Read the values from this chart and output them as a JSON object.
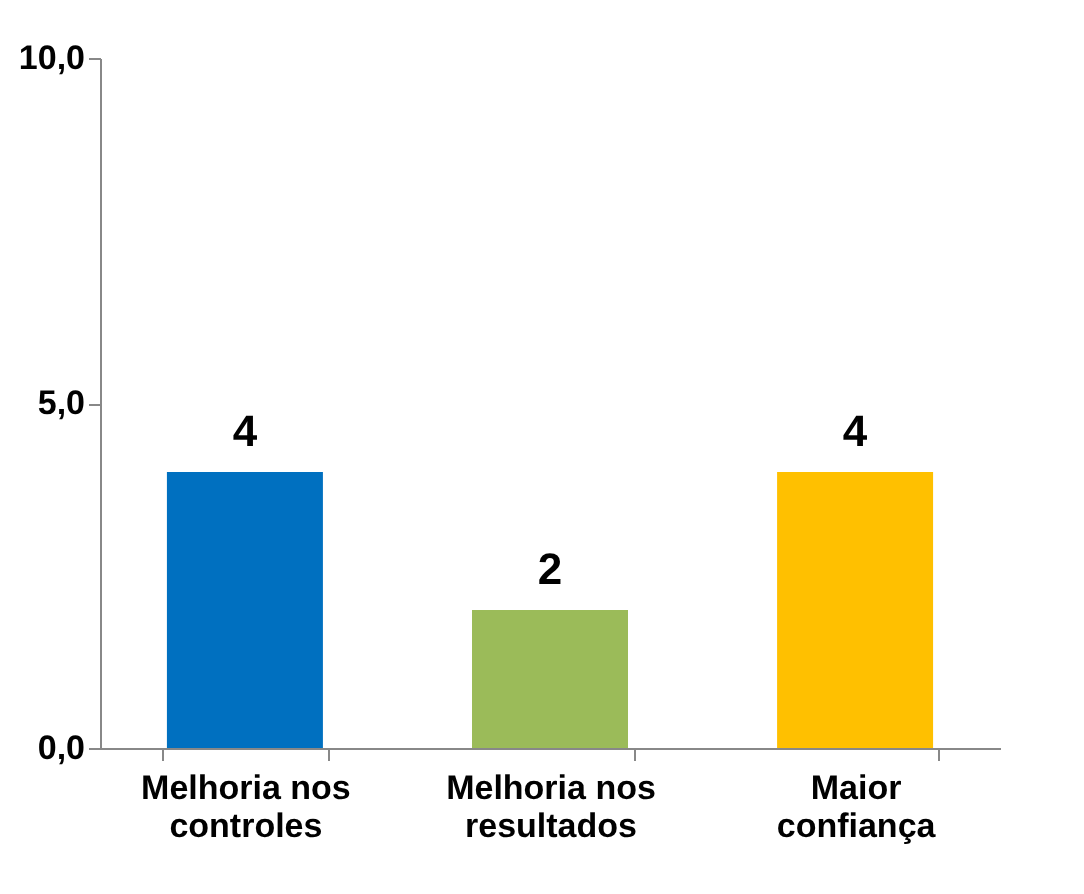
{
  "chart_data": {
    "type": "bar",
    "categories": [
      "Melhoria nos controles",
      "Melhoria nos resultados",
      "Maior confiança"
    ],
    "values": [
      4,
      2,
      4
    ],
    "colors": [
      "#0070c0",
      "#9bbb59",
      "#ffc000"
    ],
    "ylim": [
      0,
      10
    ],
    "yticks": [
      {
        "value": 0,
        "label": "0,0"
      },
      {
        "value": 5,
        "label": "5,0"
      },
      {
        "value": 10,
        "label": "10,0"
      }
    ],
    "data_labels": true,
    "grid": false
  }
}
